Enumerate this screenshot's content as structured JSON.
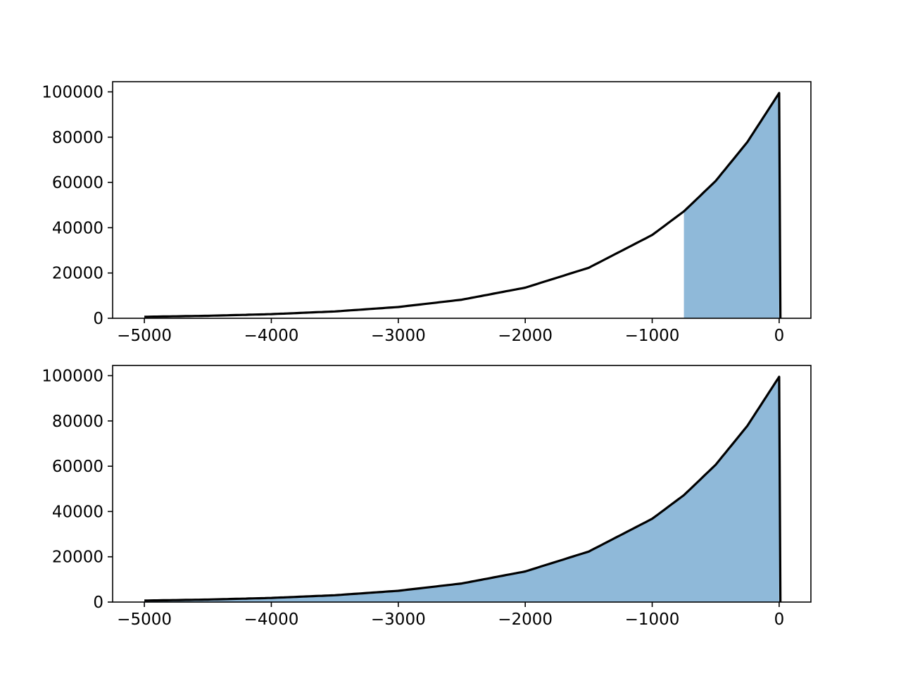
{
  "chart_data": [
    {
      "type": "area",
      "title": "",
      "xlabel": "",
      "ylabel": "",
      "xlim": [
        -5250,
        250
      ],
      "ylim": [
        0,
        104500
      ],
      "xticks": [
        -5000,
        -4000,
        -3000,
        -2000,
        -1000,
        0
      ],
      "xtick_labels": [
        "−5000",
        "−4000",
        "−3000",
        "−2000",
        "−1000",
        "0"
      ],
      "yticks": [
        0,
        20000,
        40000,
        60000,
        80000,
        100000
      ],
      "ytick_labels": [
        "0",
        "20000",
        "40000",
        "60000",
        "80000",
        "100000"
      ],
      "grid": false,
      "curve": {
        "x": [
          -5000,
          -4500,
          -4000,
          -3500,
          -3000,
          -2500,
          -2000,
          -1500,
          -1000,
          -750,
          -500,
          -250,
          0,
          10
        ],
        "y": [
          670,
          1100,
          1830,
          3020,
          4980,
          8210,
          13530,
          22310,
          36790,
          47240,
          60650,
          77880,
          99500,
          0
        ],
        "color": "#000000"
      },
      "fill": {
        "x_from": -750,
        "x_to": 0,
        "color": "#8fb9d9"
      }
    },
    {
      "type": "area",
      "title": "",
      "xlabel": "",
      "ylabel": "",
      "xlim": [
        -5250,
        250
      ],
      "ylim": [
        0,
        104500
      ],
      "xticks": [
        -5000,
        -4000,
        -3000,
        -2000,
        -1000,
        0
      ],
      "xtick_labels": [
        "−5000",
        "−4000",
        "−3000",
        "−2000",
        "−1000",
        "0"
      ],
      "yticks": [
        0,
        20000,
        40000,
        60000,
        80000,
        100000
      ],
      "ytick_labels": [
        "0",
        "20000",
        "40000",
        "60000",
        "80000",
        "100000"
      ],
      "grid": false,
      "curve": {
        "x": [
          -5000,
          -4500,
          -4000,
          -3500,
          -3000,
          -2500,
          -2000,
          -1500,
          -1000,
          -750,
          -500,
          -250,
          0,
          10
        ],
        "y": [
          670,
          1100,
          1830,
          3020,
          4980,
          8210,
          13530,
          22310,
          36790,
          47240,
          60650,
          77880,
          99500,
          0
        ],
        "color": "#000000"
      },
      "fill": {
        "x_from": -5000,
        "x_to": 0,
        "color": "#8fb9d9"
      }
    }
  ]
}
